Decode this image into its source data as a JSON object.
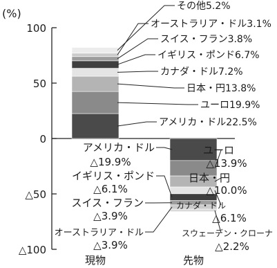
{
  "chart_data": {
    "type": "bar",
    "stacked": true,
    "ylabel": "(%)",
    "ylim": [
      -100,
      100
    ],
    "ticks": [
      {
        "value": 100,
        "label": "100"
      },
      {
        "value": 50,
        "label": "50"
      },
      {
        "value": 0,
        "label": "0"
      },
      {
        "value": -50,
        "label": "△50"
      },
      {
        "value": -100,
        "label": "△100"
      }
    ],
    "categories": [
      "現物",
      "先物"
    ],
    "bars": [
      {
        "category": "現物",
        "segments": [
          {
            "name": "アメリカ・ドル",
            "value": 22.5,
            "label": "アメリカ・ドル22.5%",
            "color": "#4a4a4a"
          },
          {
            "name": "ユーロ",
            "value": 19.9,
            "label": "ユーロ19.9%",
            "color": "#8a8a8a"
          },
          {
            "name": "日本・円",
            "value": 13.8,
            "label": "日本・円13.8%",
            "color": "#b4b4b4"
          },
          {
            "name": "カナダ・ドル",
            "value": 7.2,
            "label": "カナダ・ドル7.2%",
            "color": "#e4e4e4"
          },
          {
            "name": "イギリス・ポンド",
            "value": 6.7,
            "label": "イギリス・ポンド6.7%",
            "color": "#3f3f3f"
          },
          {
            "name": "スイス・フラン",
            "value": 3.8,
            "label": "スイス・フラン3.8%",
            "color": "#9c9c9c"
          },
          {
            "name": "オーストラリア・ドル",
            "value": 3.1,
            "label": "オーストラリア・ドル3.1%",
            "color": "#cbcbcb"
          },
          {
            "name": "その他",
            "value": 5.2,
            "label": "その他5.2%",
            "color": "#ececec"
          }
        ]
      },
      {
        "category": "先物",
        "segments": [
          {
            "name": "アメリカ・ドル",
            "value": -19.9,
            "label": "アメリカ・ドル",
            "value_label": "△19.9%",
            "color": "#4a4a4a"
          },
          {
            "name": "ユーロ",
            "value": -13.9,
            "label": "ユーロ",
            "value_label": "△13.9%",
            "color": "#8a8a8a"
          },
          {
            "name": "日本・円",
            "value": -10.0,
            "label": "日本・円",
            "value_label": "△10.0%",
            "color": "#b4b4b4"
          },
          {
            "name": "カナダ・ドル",
            "value": -6.1,
            "label": "カナダ・ドル",
            "value_label": "△6.1%",
            "color": "#e4e4e4"
          },
          {
            "name": "イギリス・ポンド",
            "value": -6.1,
            "label": "イギリス・ポンド",
            "value_label": "△6.1%",
            "color": "#3f3f3f"
          },
          {
            "name": "スイス・フラン",
            "value": -3.9,
            "label": "スイス・フラン",
            "value_label": "△3.9%",
            "color": "#9c9c9c"
          },
          {
            "name": "オーストラリア・ドル",
            "value": -3.9,
            "label": "オーストラリア・ドル",
            "value_label": "△3.9%",
            "color": "#cbcbcb"
          },
          {
            "name": "スウェーデン・クローナ",
            "value": -2.2,
            "label": "スウェーデン・クローナ",
            "value_label": "△2.2%",
            "color": "#d9d9d9"
          }
        ]
      }
    ]
  }
}
